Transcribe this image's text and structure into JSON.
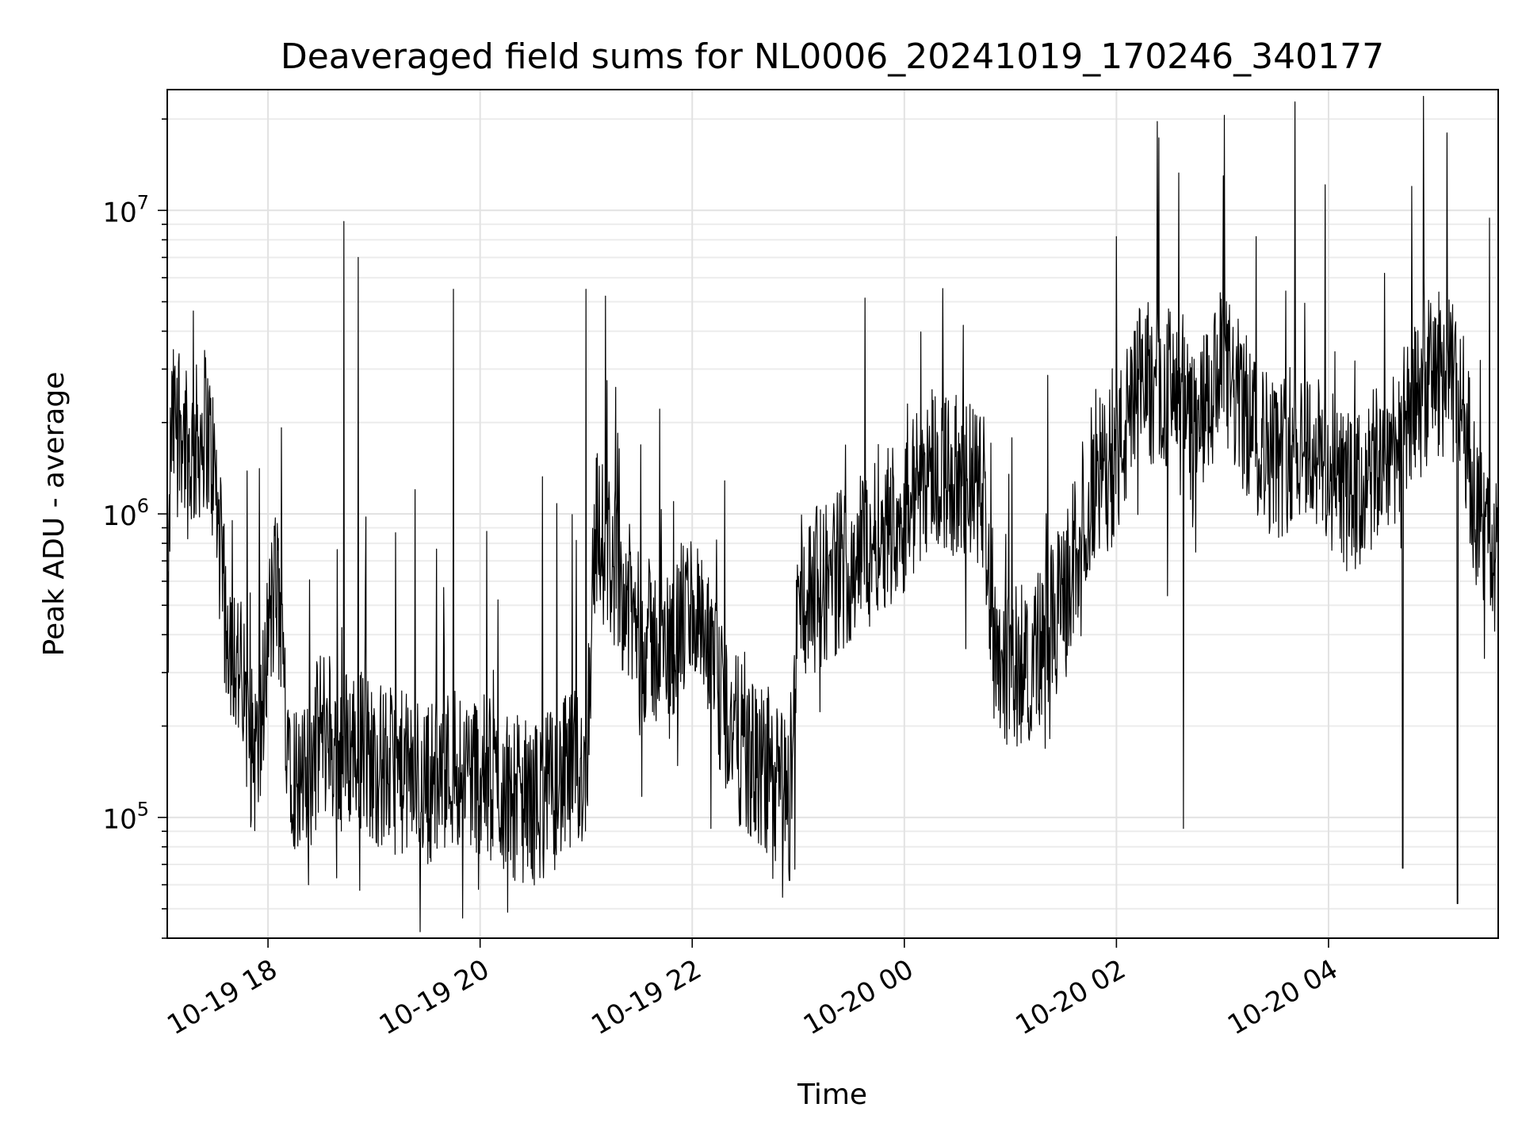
{
  "chart_data": {
    "type": "line",
    "title": "Deaveraged field sums for NL0006_20241019_170246_340177",
    "xlabel": "Time",
    "ylabel": "Peak ADU - average",
    "yscale": "log",
    "ylim": [
      40000,
      25000000
    ],
    "xlim": [
      "2024-10-19 17:03",
      "2024-10-20 05:36"
    ],
    "grid": true,
    "x_ticks": [
      {
        "t": "2024-10-19 18:00",
        "label": "10-19 18"
      },
      {
        "t": "2024-10-19 20:00",
        "label": "10-19 20"
      },
      {
        "t": "2024-10-19 22:00",
        "label": "10-19 22"
      },
      {
        "t": "2024-10-20 00:00",
        "label": "10-20 00"
      },
      {
        "t": "2024-10-20 02:00",
        "label": "10-20 02"
      },
      {
        "t": "2024-10-20 04:00",
        "label": "10-20 04"
      }
    ],
    "y_ticks": [
      {
        "value": 100000,
        "base": "10",
        "exp": "5"
      },
      {
        "value": 1000000,
        "base": "10",
        "exp": "6"
      },
      {
        "value": 10000000,
        "base": "10",
        "exp": "7"
      }
    ],
    "series": [
      {
        "color": "#000000",
        "points": [
          [
            "2024-10-19 17:03",
            260000
          ],
          [
            "2024-10-19 17:05",
            1800000
          ],
          [
            "2024-10-19 17:10",
            2200000
          ],
          [
            "2024-10-19 17:15",
            1500000
          ],
          [
            "2024-10-19 17:20",
            1700000
          ],
          [
            "2024-10-19 17:25",
            2000000
          ],
          [
            "2024-10-19 17:30",
            1300000
          ],
          [
            "2024-10-19 17:35",
            500000
          ],
          [
            "2024-10-19 17:40",
            380000
          ],
          [
            "2024-10-19 17:45",
            280000
          ],
          [
            "2024-10-19 17:50",
            170000
          ],
          [
            "2024-10-19 17:55",
            160000
          ],
          [
            "2024-10-19 18:00",
            400000
          ],
          [
            "2024-10-19 18:05",
            600000
          ],
          [
            "2024-10-19 18:10",
            230000
          ],
          [
            "2024-10-19 18:15",
            140000
          ],
          [
            "2024-10-19 18:20",
            120000
          ],
          [
            "2024-10-19 18:25",
            150000
          ],
          [
            "2024-10-19 18:30",
            200000
          ],
          [
            "2024-10-19 18:40",
            160000
          ],
          [
            "2024-10-19 18:50",
            180000
          ],
          [
            "2024-10-19 19:00",
            150000
          ],
          [
            "2024-10-19 19:15",
            140000
          ],
          [
            "2024-10-19 19:30",
            130000
          ],
          [
            "2024-10-19 19:45",
            150000
          ],
          [
            "2024-10-19 20:00",
            140000
          ],
          [
            "2024-10-19 20:15",
            120000
          ],
          [
            "2024-10-19 20:30",
            110000
          ],
          [
            "2024-10-19 20:45",
            130000
          ],
          [
            "2024-10-19 21:00",
            150000
          ],
          [
            "2024-10-19 21:05",
            900000
          ],
          [
            "2024-10-19 21:15",
            700000
          ],
          [
            "2024-10-19 21:30",
            400000
          ],
          [
            "2024-10-19 21:45",
            350000
          ],
          [
            "2024-10-19 22:00",
            500000
          ],
          [
            "2024-10-19 22:15",
            250000
          ],
          [
            "2024-10-19 22:30",
            160000
          ],
          [
            "2024-10-19 22:45",
            130000
          ],
          [
            "2024-10-19 22:55",
            120000
          ],
          [
            "2024-10-19 23:00",
            500000
          ],
          [
            "2024-10-19 23:15",
            600000
          ],
          [
            "2024-10-19 23:30",
            700000
          ],
          [
            "2024-10-19 23:45",
            900000
          ],
          [
            "2024-10-20 00:00",
            1000000
          ],
          [
            "2024-10-20 00:15",
            1500000
          ],
          [
            "2024-10-20 00:30",
            1300000
          ],
          [
            "2024-10-20 00:45",
            1200000
          ],
          [
            "2024-10-20 00:50",
            400000
          ],
          [
            "2024-10-20 01:00",
            300000
          ],
          [
            "2024-10-20 01:15",
            350000
          ],
          [
            "2024-10-20 01:30",
            500000
          ],
          [
            "2024-10-20 01:45",
            1200000
          ],
          [
            "2024-10-20 02:00",
            1500000
          ],
          [
            "2024-10-20 02:15",
            2800000
          ],
          [
            "2024-10-20 02:30",
            2600000
          ],
          [
            "2024-10-20 02:45",
            1800000
          ],
          [
            "2024-10-20 03:00",
            3000000
          ],
          [
            "2024-10-20 03:15",
            2000000
          ],
          [
            "2024-10-20 03:30",
            1500000
          ],
          [
            "2024-10-20 03:45",
            1800000
          ],
          [
            "2024-10-20 04:00",
            1400000
          ],
          [
            "2024-10-20 04:15",
            1100000
          ],
          [
            "2024-10-20 04:30",
            1500000
          ],
          [
            "2024-10-20 04:45",
            2000000
          ],
          [
            "2024-10-20 05:00",
            3000000
          ],
          [
            "2024-10-20 05:15",
            2500000
          ],
          [
            "2024-10-20 05:25",
            900000
          ],
          [
            "2024-10-20 05:36",
            700000
          ]
        ],
        "spikes": [
          [
            "2024-10-19 18:43",
            9200000
          ],
          [
            "2024-10-19 18:51",
            7000000
          ],
          [
            "2024-10-19 19:45",
            5500000
          ],
          [
            "2024-10-19 21:00",
            5500000
          ],
          [
            "2024-10-20 02:00",
            8200000
          ],
          [
            "2024-10-20 04:47",
            12000000
          ],
          [
            "2024-10-20 05:07",
            18000000
          ],
          [
            "2024-10-20 04:42",
            68000
          ],
          [
            "2024-10-20 05:13",
            52000
          ],
          [
            "2024-10-19 18:23",
            60000
          ],
          [
            "2024-10-19 22:55",
            62000
          ],
          [
            "2024-10-20 02:38",
            92000
          ]
        ]
      }
    ]
  }
}
